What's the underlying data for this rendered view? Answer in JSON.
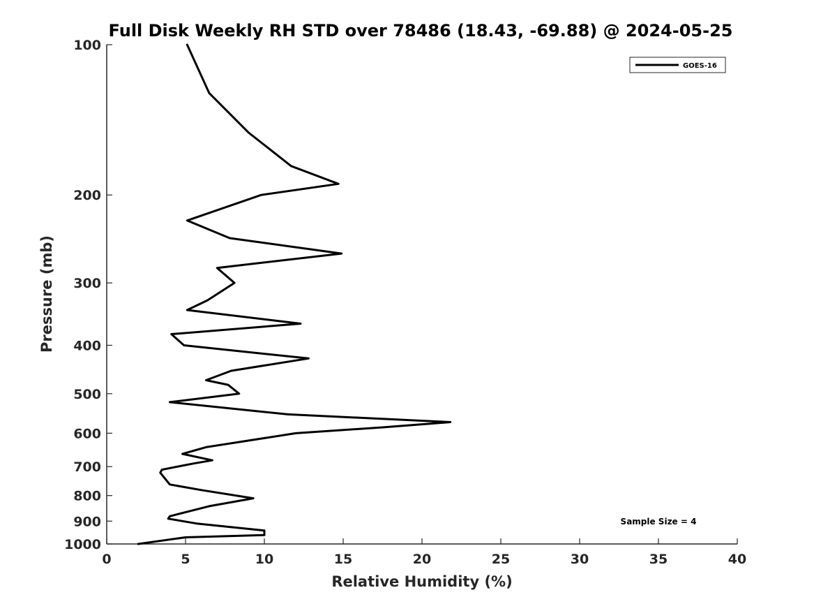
{
  "chart_data": {
    "type": "line",
    "title": "Full Disk Weekly RH STD over 78486 (18.43, -69.88) @ 2024-05-25",
    "xlabel": "Relative Humidity (%)",
    "ylabel": "Pressure (mb)",
    "xlim": [
      0,
      40
    ],
    "ylim": [
      100,
      1000
    ],
    "y_scale": "log",
    "y_reversed": true,
    "x_ticks": [
      0,
      5,
      10,
      15,
      20,
      25,
      30,
      35,
      40
    ],
    "y_ticks": [
      100,
      200,
      300,
      400,
      500,
      600,
      700,
      800,
      900,
      1000
    ],
    "grid": false,
    "legend_position": "top-right",
    "annotation": "Sample Size = 4",
    "series": [
      {
        "name": "GOES-16",
        "color": "#000000",
        "points": [
          [
            5.1,
            100
          ],
          [
            6.5,
            125
          ],
          [
            9.0,
            150
          ],
          [
            11.7,
            175
          ],
          [
            14.7,
            190
          ],
          [
            9.8,
            200
          ],
          [
            5.1,
            225
          ],
          [
            7.8,
            244
          ],
          [
            14.9,
            262
          ],
          [
            7.0,
            280
          ],
          [
            8.1,
            300
          ],
          [
            6.4,
            325
          ],
          [
            5.1,
            340
          ],
          [
            12.3,
            362
          ],
          [
            4.1,
            380
          ],
          [
            4.9,
            400
          ],
          [
            12.8,
            425
          ],
          [
            7.9,
            450
          ],
          [
            6.3,
            470
          ],
          [
            7.7,
            480
          ],
          [
            8.4,
            500
          ],
          [
            4.0,
            520
          ],
          [
            11.5,
            550
          ],
          [
            21.8,
            570
          ],
          [
            17.5,
            584
          ],
          [
            12.0,
            600
          ],
          [
            6.3,
            640
          ],
          [
            4.8,
            660
          ],
          [
            6.7,
            680
          ],
          [
            5.5,
            690
          ],
          [
            3.5,
            710
          ],
          [
            3.4,
            720
          ],
          [
            4.0,
            760
          ],
          [
            6.0,
            780
          ],
          [
            9.3,
            810
          ],
          [
            6.5,
            840
          ],
          [
            4.0,
            880
          ],
          [
            3.9,
            890
          ],
          [
            5.7,
            910
          ],
          [
            10.0,
            940
          ],
          [
            10.0,
            960
          ],
          [
            5.0,
            970
          ],
          [
            2.0,
            1000
          ]
        ]
      }
    ]
  }
}
